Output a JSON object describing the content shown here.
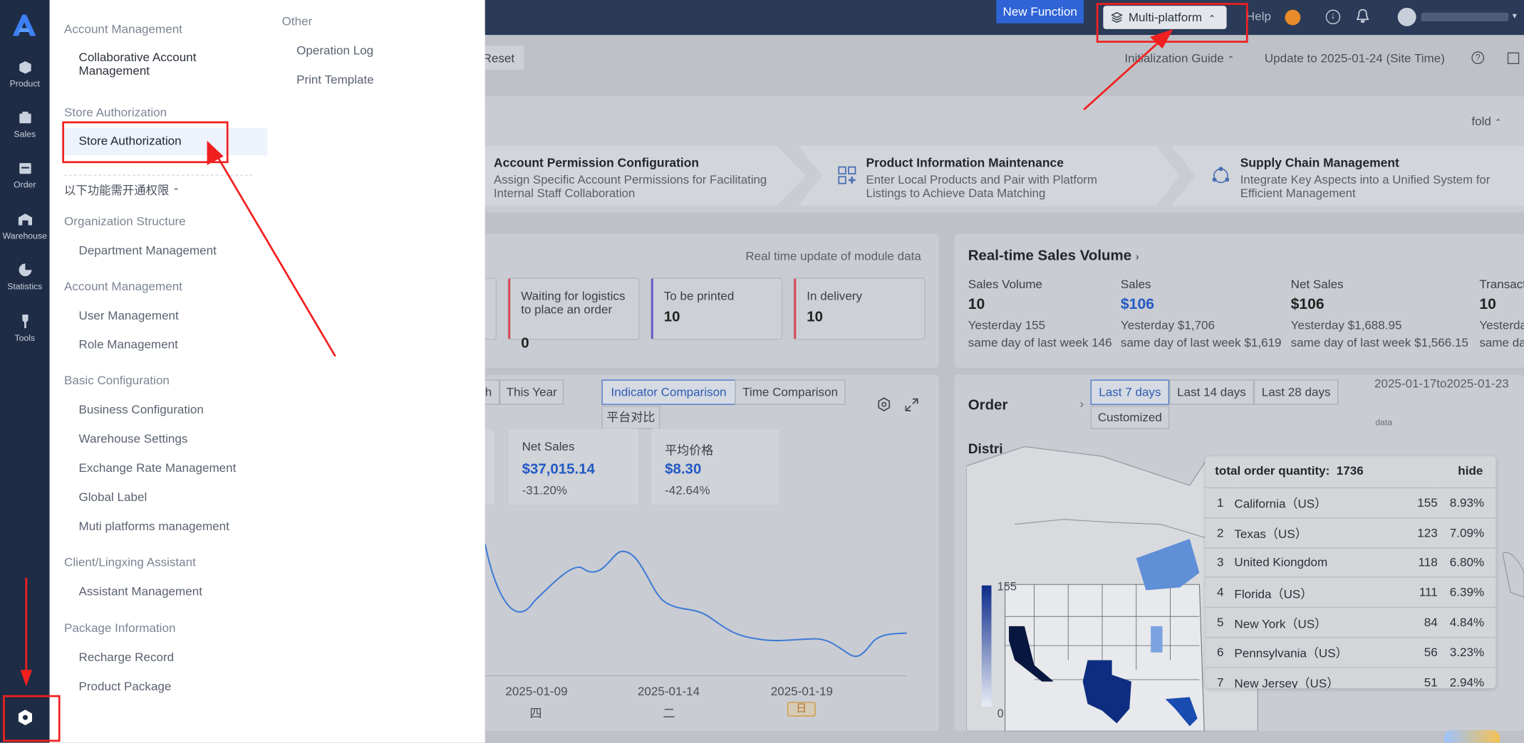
{
  "rail": {
    "logo": "A",
    "items": [
      {
        "label": "Product",
        "icon": "product-icon"
      },
      {
        "label": "Sales",
        "icon": "sales-icon"
      },
      {
        "label": "Order",
        "icon": "order-icon"
      },
      {
        "label": "Warehouse",
        "icon": "warehouse-icon"
      },
      {
        "label": "Statistics",
        "icon": "statistics-icon"
      },
      {
        "label": "Tools",
        "icon": "tools-icon"
      }
    ],
    "settings_icon": "settings-icon"
  },
  "topbar": {
    "new_function": "New Function",
    "multi_platform": "Multi-platform",
    "help": "Help"
  },
  "menu": {
    "account_management": "Account Management",
    "collaborative": "Collaborative Account Management",
    "store_auth_section": "Store Authorization",
    "store_auth_item": "Store Authorization",
    "needs_permission": "以下功能需开通权限",
    "org_structure": "Organization Structure",
    "department": "Department Management",
    "account_management_2": "Account Management",
    "user_mgmt": "User Management",
    "role_mgmt": "Role Management",
    "basic_config": "Basic Configuration",
    "business_config": "Business Configuration",
    "warehouse_settings": "Warehouse Settings",
    "exchange_rate": "Exchange Rate Management",
    "global_label": "Global Label",
    "muti_platforms": "Muti platforms management",
    "client_assistant": "Client/Lingxing Assistant",
    "assistant_mgmt": "Assistant Management",
    "package_info": "Package Information",
    "recharge": "Recharge Record",
    "product_package": "Product Package",
    "other": "Other",
    "operation_log": "Operation Log",
    "print_template": "Print Template"
  },
  "toolbar": {
    "reset": "Reset",
    "init_guide": "Initialization Guide",
    "update": "Update to 2025-01-24 (Site Time)",
    "fold": "fold"
  },
  "guide": [
    {
      "title": "Account Permission Configuration",
      "desc1": "Assign Specific Account Permissions for Facilitating",
      "desc2": "Internal Staff Collaboration"
    },
    {
      "title": "Product Information Maintenance",
      "desc1": "Enter Local Products and Pair with Platform",
      "desc2": "Listings to Achieve Data Matching"
    },
    {
      "title": "Supply Chain Management",
      "desc1": "Integrate Key Aspects into a Unified System for",
      "desc2": "Efficient Management"
    }
  ],
  "orders_panel": {
    "realtime_note": "Real time update of module data",
    "cards": [
      {
        "label": "Waiting for logistics to place an order",
        "value": "0",
        "color": "#d9414e"
      },
      {
        "label": "To be printed",
        "value": "10",
        "color": "#6a55c8"
      },
      {
        "label": "In delivery",
        "value": "10",
        "color": "#d9414e"
      }
    ]
  },
  "sales_panel": {
    "title": "Real-time Sales Volume",
    "columns": [
      {
        "label": "Sales Volume",
        "value": "10",
        "yesterday": "Yesterday 155",
        "last_week": "same day of last week 146"
      },
      {
        "label": "Sales",
        "value": "$106",
        "yesterday": "Yesterday $1,706",
        "last_week": "same day of last week $1,619"
      },
      {
        "label": "Net Sales",
        "value": "$106",
        "yesterday": "Yesterday $1,688.95",
        "last_week": "same day of last week $1,566.15"
      },
      {
        "label": "Transact",
        "value": "10",
        "yesterday": "Yesterda",
        "last_week": "same da"
      }
    ]
  },
  "trend_panel": {
    "tab_partial": "h",
    "this_year": "This Year",
    "indicator": "Indicator Comparison",
    "time_comparison": "Time Comparison",
    "platform": "平台对比",
    "metrics": [
      {
        "label": "Net Sales",
        "value": "$37,015.14",
        "change": "-31.20%"
      },
      {
        "label": "平均价格",
        "value": "$8.30",
        "change": "-42.64%"
      }
    ],
    "x_labels": [
      "2025-01-09",
      "2025-01-14",
      "2025-01-19"
    ],
    "x_sub": [
      "四",
      "二",
      "日"
    ]
  },
  "order_map": {
    "title": "Order",
    "dist_partial": "Distri",
    "range": [
      "Last 7 days",
      "Last 14 days",
      "Last 28 days",
      "Customized"
    ],
    "date_range": "2025-01-17to2025-01-23",
    "data_partial": "data",
    "legend_max": "155",
    "legend_min": "0",
    "total_label": "total order quantity:",
    "total_value": "1736",
    "hide": "hide",
    "rows": [
      {
        "rank": "1",
        "name": "California（US）",
        "count": "155",
        "pct": "8.93%"
      },
      {
        "rank": "2",
        "name": "Texas（US）",
        "count": "123",
        "pct": "7.09%"
      },
      {
        "rank": "3",
        "name": "United Kiongdom",
        "count": "118",
        "pct": "6.80%"
      },
      {
        "rank": "4",
        "name": "Florida（US）",
        "count": "111",
        "pct": "6.39%"
      },
      {
        "rank": "5",
        "name": "New York（US）",
        "count": "84",
        "pct": "4.84%"
      },
      {
        "rank": "6",
        "name": "Pennsylvania（US）",
        "count": "56",
        "pct": "3.23%"
      },
      {
        "rank": "7",
        "name": "New Jersey（US）",
        "count": "51",
        "pct": "2.94%"
      }
    ]
  }
}
